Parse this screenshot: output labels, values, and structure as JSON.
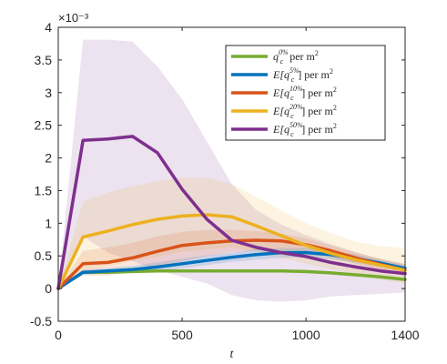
{
  "chart_data": {
    "type": "line",
    "xlabel": "t",
    "ylabel": "",
    "xlim": [
      0,
      1400
    ],
    "ylim": [
      -0.5,
      4
    ],
    "y_scale_label": "×10⁻³",
    "x_ticks": [
      0,
      500,
      1000,
      1400
    ],
    "x_tick_labels": [
      "0",
      "500",
      "1000",
      "1400"
    ],
    "y_ticks": [
      -0.5,
      0,
      0.5,
      1,
      1.5,
      2,
      2.5,
      3,
      3.5,
      4
    ],
    "y_tick_labels": [
      "-0.5",
      "0",
      "0.5",
      "1",
      "1.5",
      "2",
      "2.5",
      "3",
      "3.5",
      "4"
    ],
    "grid": false,
    "legend_position": "top-right",
    "x": [
      0,
      100,
      200,
      300,
      400,
      500,
      600,
      700,
      800,
      900,
      1000,
      1100,
      1200,
      1300,
      1400
    ],
    "series": [
      {
        "name": "q_c^{0%} per m²",
        "legend_base": "q",
        "legend_sup": "0%",
        "legend_suffix": " per m",
        "color": "#77ac30",
        "values": [
          0,
          0.25,
          0.25,
          0.26,
          0.27,
          0.27,
          0.27,
          0.27,
          0.27,
          0.27,
          0.26,
          0.24,
          0.21,
          0.18,
          0.14
        ],
        "upper": null,
        "lower": null
      },
      {
        "name": "E[q_c^{5%}] per m²",
        "legend_base": "E[q",
        "legend_sup": "5%",
        "legend_suffix": "] per m",
        "color": "#0072bd",
        "values": [
          0,
          0.25,
          0.27,
          0.29,
          0.33,
          0.38,
          0.43,
          0.48,
          0.52,
          0.55,
          0.55,
          0.52,
          0.46,
          0.39,
          0.31
        ],
        "upper": [
          0,
          0.29,
          0.32,
          0.35,
          0.4,
          0.46,
          0.51,
          0.55,
          0.6,
          0.62,
          0.62,
          0.58,
          0.52,
          0.44,
          0.36
        ],
        "lower": [
          0,
          0.21,
          0.22,
          0.24,
          0.27,
          0.31,
          0.36,
          0.41,
          0.44,
          0.47,
          0.48,
          0.45,
          0.4,
          0.33,
          0.26
        ]
      },
      {
        "name": "E[q_c^{10%}] per m²",
        "legend_base": "E[q",
        "legend_sup": "10%",
        "legend_suffix": "] per m",
        "color": "#d95319",
        "values": [
          0,
          0.38,
          0.4,
          0.47,
          0.57,
          0.66,
          0.7,
          0.73,
          0.74,
          0.73,
          0.67,
          0.58,
          0.47,
          0.37,
          0.28
        ],
        "upper": [
          0,
          0.58,
          0.63,
          0.7,
          0.8,
          0.87,
          0.9,
          0.9,
          0.88,
          0.84,
          0.77,
          0.66,
          0.55,
          0.46,
          0.38
        ],
        "lower": [
          0,
          0.2,
          0.2,
          0.25,
          0.32,
          0.42,
          0.5,
          0.56,
          0.58,
          0.59,
          0.56,
          0.48,
          0.38,
          0.28,
          0.19
        ]
      },
      {
        "name": "E[q_c^{20%}] per m²",
        "legend_base": "E[q",
        "legend_sup": "20%",
        "legend_suffix": "] per m",
        "color": "#edb120",
        "values": [
          0,
          0.79,
          0.88,
          0.98,
          1.06,
          1.11,
          1.13,
          1.1,
          0.96,
          0.81,
          0.66,
          0.54,
          0.44,
          0.36,
          0.28
        ],
        "upper": [
          0,
          1.33,
          1.47,
          1.57,
          1.64,
          1.69,
          1.69,
          1.6,
          1.4,
          1.2,
          1.0,
          0.85,
          0.72,
          0.65,
          0.62
        ],
        "lower": [
          0,
          0.28,
          0.34,
          0.42,
          0.49,
          0.56,
          0.6,
          0.63,
          0.57,
          0.47,
          0.38,
          0.3,
          0.22,
          0.14,
          0.08
        ]
      },
      {
        "name": "E[q_c^{50%}] per m²",
        "legend_base": "E[q",
        "legend_sup": "50%",
        "legend_suffix": "] per m",
        "color": "#7e2f8e",
        "values": [
          0,
          2.27,
          2.29,
          2.33,
          2.08,
          1.52,
          1.06,
          0.74,
          0.63,
          0.55,
          0.49,
          0.4,
          0.33,
          0.27,
          0.23
        ],
        "upper": [
          0,
          3.81,
          3.81,
          3.78,
          3.4,
          2.9,
          2.25,
          1.6,
          1.2,
          0.98,
          0.82,
          0.68,
          0.56,
          0.45,
          0.37
        ],
        "lower": [
          0,
          0.8,
          0.55,
          0.42,
          0.28,
          0.18,
          0.08,
          -0.1,
          -0.18,
          -0.2,
          -0.18,
          -0.12,
          -0.1,
          -0.08,
          -0.06
        ]
      }
    ]
  }
}
